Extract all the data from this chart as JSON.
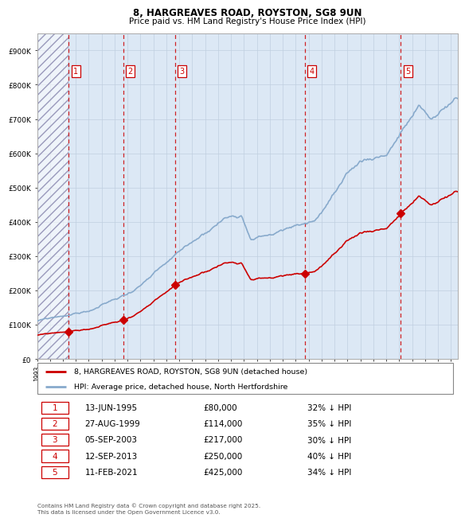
{
  "title1": "8, HARGREAVES ROAD, ROYSTON, SG8 9UN",
  "title2": "Price paid vs. HM Land Registry's House Price Index (HPI)",
  "ylabel_values": [
    "£0",
    "£100K",
    "£200K",
    "£300K",
    "£400K",
    "£500K",
    "£600K",
    "£700K",
    "£800K",
    "£900K"
  ],
  "ylim": [
    0,
    950000
  ],
  "xlim_start": 1993.0,
  "xlim_end": 2025.5,
  "sale_color": "#cc0000",
  "hpi_color": "#88aacc",
  "hpi_bg_color": "#dce8f5",
  "grid_color": "#c0cfe0",
  "vline_color": "#cc0000",
  "sales": [
    {
      "num": 1,
      "date": "13-JUN-1995",
      "year": 1995.45,
      "price": 80000,
      "pct": "32%",
      "label": "1"
    },
    {
      "num": 2,
      "date": "27-AUG-1999",
      "year": 1999.65,
      "price": 114000,
      "pct": "35%",
      "label": "2"
    },
    {
      "num": 3,
      "date": "05-SEP-2003",
      "year": 2003.67,
      "price": 217000,
      "pct": "30%",
      "label": "3"
    },
    {
      "num": 4,
      "date": "12-SEP-2013",
      "year": 2013.7,
      "price": 250000,
      "pct": "40%",
      "label": "4"
    },
    {
      "num": 5,
      "date": "11-FEB-2021",
      "year": 2021.12,
      "price": 425000,
      "pct": "34%",
      "label": "5"
    }
  ],
  "legend_sale_label": "8, HARGREAVES ROAD, ROYSTON, SG8 9UN (detached house)",
  "legend_hpi_label": "HPI: Average price, detached house, North Hertfordshire",
  "footnote": "Contains HM Land Registry data © Crown copyright and database right 2025.\nThis data is licensed under the Open Government Licence v3.0.",
  "table_rows": [
    [
      "1",
      "13-JUN-1995",
      "£80,000",
      "32% ↓ HPI"
    ],
    [
      "2",
      "27-AUG-1999",
      "£114,000",
      "35% ↓ HPI"
    ],
    [
      "3",
      "05-SEP-2003",
      "£217,000",
      "30% ↓ HPI"
    ],
    [
      "4",
      "12-SEP-2013",
      "£250,000",
      "40% ↓ HPI"
    ],
    [
      "5",
      "11-FEB-2021",
      "£425,000",
      "34% ↓ HPI"
    ]
  ]
}
